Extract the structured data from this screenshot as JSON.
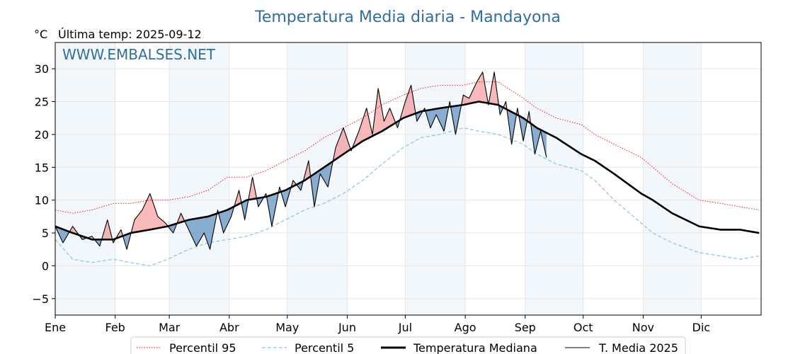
{
  "chart_data": {
    "type": "line",
    "title": "Temperatura Media diaria - Mandayona",
    "unit_label": "°C",
    "last_temp_label": "Última temp: 2025-09-12",
    "watermark": "WWW.EMBALSES.NET",
    "ylim": [
      -7.5,
      34
    ],
    "yticks": [
      -5,
      0,
      5,
      10,
      15,
      20,
      25,
      30
    ],
    "xticks": [
      {
        "label": "Ene",
        "day": 1
      },
      {
        "label": "Feb",
        "day": 32
      },
      {
        "label": "Mar",
        "day": 60
      },
      {
        "label": "Abr",
        "day": 91
      },
      {
        "label": "May",
        "day": 121
      },
      {
        "label": "Jun",
        "day": 152
      },
      {
        "label": "Jul",
        "day": 182
      },
      {
        "label": "Ago",
        "day": 213
      },
      {
        "label": "Sep",
        "day": 244
      },
      {
        "label": "Oct",
        "day": 274
      },
      {
        "label": "Nov",
        "day": 305
      },
      {
        "label": "Dic",
        "day": 335
      }
    ],
    "grid": true,
    "legend_position": "bottom-center",
    "series": [
      {
        "name": "Percentil 95",
        "color": "#ff0000",
        "style": "dotted",
        "points": [
          [
            1,
            8.5
          ],
          [
            10,
            8.0
          ],
          [
            20,
            8.5
          ],
          [
            31,
            9.5
          ],
          [
            40,
            9.5
          ],
          [
            50,
            10.0
          ],
          [
            59,
            10.0
          ],
          [
            70,
            10.5
          ],
          [
            80,
            11.5
          ],
          [
            90,
            13.5
          ],
          [
            100,
            13.5
          ],
          [
            110,
            14.5
          ],
          [
            120,
            16.0
          ],
          [
            130,
            17.5
          ],
          [
            140,
            19.5
          ],
          [
            150,
            21.0
          ],
          [
            160,
            22.5
          ],
          [
            170,
            24.5
          ],
          [
            181,
            26.0
          ],
          [
            190,
            27.0
          ],
          [
            200,
            27.5
          ],
          [
            212,
            27.5
          ],
          [
            220,
            28.0
          ],
          [
            230,
            28.0
          ],
          [
            243,
            25.5
          ],
          [
            250,
            24.0
          ],
          [
            260,
            22.5
          ],
          [
            273,
            21.5
          ],
          [
            280,
            20.0
          ],
          [
            290,
            18.5
          ],
          [
            304,
            16.5
          ],
          [
            310,
            15.0
          ],
          [
            320,
            12.5
          ],
          [
            334,
            10.0
          ],
          [
            345,
            9.5
          ],
          [
            355,
            9.0
          ],
          [
            365,
            8.5
          ]
        ]
      },
      {
        "name": "Percentil 5",
        "color": "#8cc4dc",
        "style": "dashed",
        "points": [
          [
            1,
            4.0
          ],
          [
            10,
            1.0
          ],
          [
            20,
            0.5
          ],
          [
            31,
            1.0
          ],
          [
            40,
            0.5
          ],
          [
            50,
            0.0
          ],
          [
            59,
            1.0
          ],
          [
            70,
            2.5
          ],
          [
            80,
            3.5
          ],
          [
            90,
            4.0
          ],
          [
            100,
            4.5
          ],
          [
            110,
            5.5
          ],
          [
            120,
            7.0
          ],
          [
            130,
            8.5
          ],
          [
            140,
            9.5
          ],
          [
            150,
            11.0
          ],
          [
            160,
            13.0
          ],
          [
            170,
            15.5
          ],
          [
            181,
            18.0
          ],
          [
            190,
            19.5
          ],
          [
            200,
            20.0
          ],
          [
            212,
            21.0
          ],
          [
            220,
            20.5
          ],
          [
            230,
            20.0
          ],
          [
            243,
            18.5
          ],
          [
            250,
            17.0
          ],
          [
            260,
            15.5
          ],
          [
            273,
            14.5
          ],
          [
            280,
            13.0
          ],
          [
            290,
            10.0
          ],
          [
            304,
            6.5
          ],
          [
            310,
            5.0
          ],
          [
            320,
            3.5
          ],
          [
            334,
            2.0
          ],
          [
            345,
            1.5
          ],
          [
            355,
            1.0
          ],
          [
            365,
            1.5
          ]
        ]
      },
      {
        "name": "Temperatura Mediana",
        "color": "#000000",
        "style": "thick",
        "points": [
          [
            1,
            6.0
          ],
          [
            10,
            5.0
          ],
          [
            20,
            4.0
          ],
          [
            31,
            4.0
          ],
          [
            40,
            5.0
          ],
          [
            50,
            5.5
          ],
          [
            59,
            6.0
          ],
          [
            70,
            7.0
          ],
          [
            80,
            7.5
          ],
          [
            90,
            8.5
          ],
          [
            100,
            10.0
          ],
          [
            110,
            10.5
          ],
          [
            120,
            11.5
          ],
          [
            130,
            13.0
          ],
          [
            140,
            15.0
          ],
          [
            150,
            17.0
          ],
          [
            160,
            19.0
          ],
          [
            170,
            20.5
          ],
          [
            181,
            22.5
          ],
          [
            190,
            23.5
          ],
          [
            200,
            24.0
          ],
          [
            212,
            24.5
          ],
          [
            220,
            25.0
          ],
          [
            230,
            24.5
          ],
          [
            243,
            22.5
          ],
          [
            250,
            21.0
          ],
          [
            260,
            19.5
          ],
          [
            273,
            17.0
          ],
          [
            280,
            16.0
          ],
          [
            290,
            14.0
          ],
          [
            304,
            11.0
          ],
          [
            310,
            10.0
          ],
          [
            320,
            8.0
          ],
          [
            334,
            6.0
          ],
          [
            345,
            5.5
          ],
          [
            355,
            5.5
          ],
          [
            365,
            5.0
          ]
        ]
      },
      {
        "name": "T. Media 2025",
        "color": "#000000",
        "style": "thin",
        "points": [
          [
            1,
            6.0
          ],
          [
            5,
            3.5
          ],
          [
            10,
            6.0
          ],
          [
            15,
            4.0
          ],
          [
            20,
            4.5
          ],
          [
            24,
            3.0
          ],
          [
            28,
            7.0
          ],
          [
            31,
            3.5
          ],
          [
            35,
            5.5
          ],
          [
            38,
            2.5
          ],
          [
            42,
            7.0
          ],
          [
            46,
            8.5
          ],
          [
            50,
            11.0
          ],
          [
            54,
            7.5
          ],
          [
            58,
            6.5
          ],
          [
            62,
            5.0
          ],
          [
            66,
            8.0
          ],
          [
            70,
            5.5
          ],
          [
            74,
            3.0
          ],
          [
            78,
            5.0
          ],
          [
            81,
            2.5
          ],
          [
            85,
            8.5
          ],
          [
            88,
            5.0
          ],
          [
            92,
            7.5
          ],
          [
            96,
            11.5
          ],
          [
            99,
            7.0
          ],
          [
            103,
            13.5
          ],
          [
            106,
            9.0
          ],
          [
            110,
            11.0
          ],
          [
            113,
            6.0
          ],
          [
            117,
            12.0
          ],
          [
            120,
            9.0
          ],
          [
            124,
            13.0
          ],
          [
            128,
            11.5
          ],
          [
            132,
            16.0
          ],
          [
            135,
            9.0
          ],
          [
            138,
            14.0
          ],
          [
            142,
            12.0
          ],
          [
            146,
            18.0
          ],
          [
            150,
            21.0
          ],
          [
            154,
            17.5
          ],
          [
            158,
            20.5
          ],
          [
            162,
            24.0
          ],
          [
            165,
            20.0
          ],
          [
            168,
            27.0
          ],
          [
            171,
            22.0
          ],
          [
            174,
            24.0
          ],
          [
            178,
            21.0
          ],
          [
            182,
            25.0
          ],
          [
            185,
            27.5
          ],
          [
            188,
            22.0
          ],
          [
            192,
            24.0
          ],
          [
            195,
            21.0
          ],
          [
            198,
            23.0
          ],
          [
            202,
            20.5
          ],
          [
            205,
            25.0
          ],
          [
            208,
            20.0
          ],
          [
            212,
            26.0
          ],
          [
            215,
            25.5
          ],
          [
            219,
            28.0
          ],
          [
            222,
            29.5
          ],
          [
            225,
            24.5
          ],
          [
            228,
            29.5
          ],
          [
            231,
            23.0
          ],
          [
            234,
            25.0
          ],
          [
            237,
            18.5
          ],
          [
            240,
            24.0
          ],
          [
            243,
            19.0
          ],
          [
            246,
            23.5
          ],
          [
            249,
            17.0
          ],
          [
            252,
            20.5
          ],
          [
            255,
            16.5
          ]
        ]
      }
    ],
    "above_fill_color": "#f08080",
    "below_fill_color": "#4f86b8"
  }
}
